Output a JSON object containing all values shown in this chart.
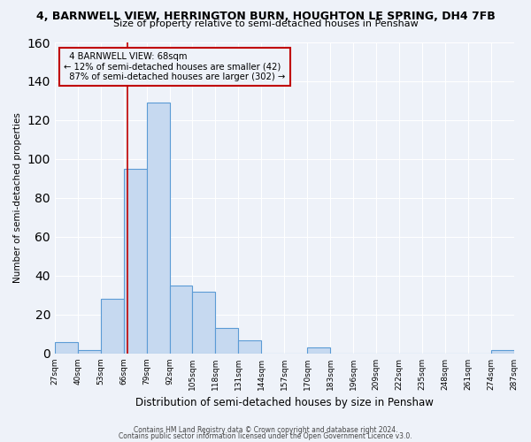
{
  "title": "4, BARNWELL VIEW, HERRINGTON BURN, HOUGHTON LE SPRING, DH4 7FB",
  "subtitle": "Size of property relative to semi-detached houses in Penshaw",
  "xlabel": "Distribution of semi-detached houses by size in Penshaw",
  "ylabel": "Number of semi-detached properties",
  "bin_edges": [
    27,
    40,
    53,
    66,
    79,
    92,
    105,
    118,
    131,
    144,
    157,
    170,
    183,
    196,
    209,
    222,
    235,
    248,
    261,
    274,
    287
  ],
  "bar_heights": [
    6,
    2,
    28,
    95,
    129,
    35,
    32,
    13,
    7,
    0,
    0,
    3,
    0,
    0,
    0,
    0,
    0,
    0,
    0,
    2
  ],
  "bar_color": "#c6d9f0",
  "bar_edge_color": "#5b9bd5",
  "property_size": 68,
  "property_label": "4 BARNWELL VIEW: 68sqm",
  "smaller_pct": "12%",
  "smaller_count": 42,
  "larger_pct": "87%",
  "larger_count": 302,
  "vline_color": "#c00000",
  "annotation_box_edge_color": "#c00000",
  "bg_color": "#eef2f9",
  "ylim": [
    0,
    160
  ],
  "tick_labels": [
    "27sqm",
    "40sqm",
    "53sqm",
    "66sqm",
    "79sqm",
    "92sqm",
    "105sqm",
    "118sqm",
    "131sqm",
    "144sqm",
    "157sqm",
    "170sqm",
    "183sqm",
    "196sqm",
    "209sqm",
    "222sqm",
    "235sqm",
    "248sqm",
    "261sqm",
    "274sqm",
    "287sqm"
  ],
  "footer1": "Contains HM Land Registry data © Crown copyright and database right 2024.",
  "footer2": "Contains public sector information licensed under the Open Government Licence v3.0."
}
